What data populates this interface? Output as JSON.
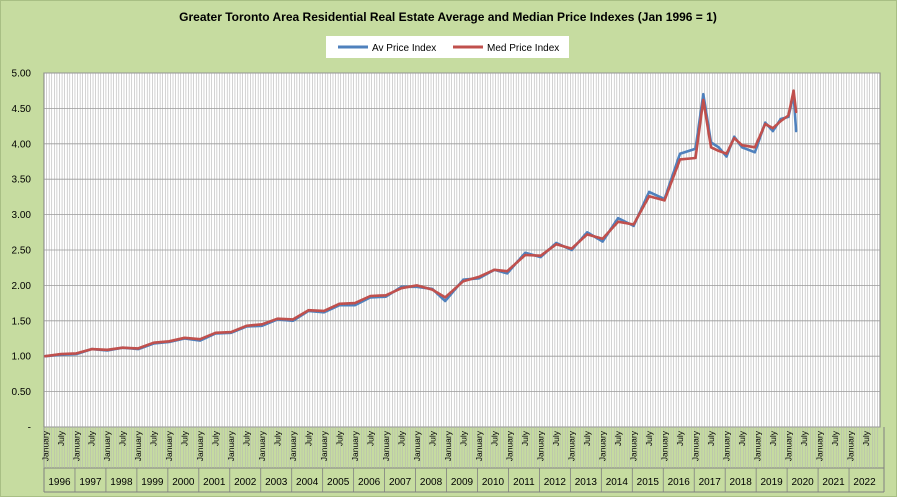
{
  "chart_data": {
    "type": "line",
    "title": "Greater Toronto Area Residential Real Estate Average and Median Price Indexes (Jan 1996 = 1)",
    "xlabel": "",
    "ylabel": "",
    "x_range": [
      "1996-01",
      "2022-12"
    ],
    "ylim": [
      0,
      5
    ],
    "y_ticks": [
      "-",
      "0.50",
      "1.00",
      "1.50",
      "2.00",
      "2.50",
      "3.00",
      "3.50",
      "4.00",
      "4.50",
      "5.00"
    ],
    "month_tick_labels": [
      "January",
      "July"
    ],
    "year_labels": [
      "1996",
      "1997",
      "1998",
      "1999",
      "2000",
      "2001",
      "2002",
      "2003",
      "2004",
      "2005",
      "2006",
      "2007",
      "2008",
      "2009",
      "2010",
      "2011",
      "2012",
      "2013",
      "2014",
      "2015",
      "2016",
      "2017",
      "2018",
      "2019",
      "2020",
      "2021",
      "2022"
    ],
    "grid": "vertical-monthly-and-horizontal",
    "legend_position": "top-center",
    "series": [
      {
        "name": "Av Price Index",
        "color": "#4f81bd",
        "points": [
          [
            "1996-01",
            1.0
          ],
          [
            "1996-07",
            1.02
          ],
          [
            "1997-01",
            1.03
          ],
          [
            "1997-07",
            1.1
          ],
          [
            "1998-01",
            1.08
          ],
          [
            "1998-07",
            1.12
          ],
          [
            "1999-01",
            1.1
          ],
          [
            "1999-07",
            1.18
          ],
          [
            "2000-01",
            1.2
          ],
          [
            "2000-07",
            1.25
          ],
          [
            "2001-01",
            1.22
          ],
          [
            "2001-07",
            1.32
          ],
          [
            "2002-01",
            1.33
          ],
          [
            "2002-07",
            1.42
          ],
          [
            "2003-01",
            1.43
          ],
          [
            "2003-07",
            1.52
          ],
          [
            "2004-01",
            1.5
          ],
          [
            "2004-07",
            1.64
          ],
          [
            "2005-01",
            1.62
          ],
          [
            "2005-07",
            1.72
          ],
          [
            "2006-01",
            1.72
          ],
          [
            "2006-07",
            1.83
          ],
          [
            "2007-01",
            1.84
          ],
          [
            "2007-07",
            1.98
          ],
          [
            "2008-01",
            1.98
          ],
          [
            "2008-07",
            1.95
          ],
          [
            "2008-12",
            1.78
          ],
          [
            "2009-07",
            2.08
          ],
          [
            "2010-01",
            2.1
          ],
          [
            "2010-07",
            2.22
          ],
          [
            "2010-12",
            2.17
          ],
          [
            "2011-07",
            2.46
          ],
          [
            "2012-01",
            2.4
          ],
          [
            "2012-07",
            2.6
          ],
          [
            "2013-01",
            2.5
          ],
          [
            "2013-07",
            2.75
          ],
          [
            "2014-01",
            2.62
          ],
          [
            "2014-07",
            2.95
          ],
          [
            "2015-01",
            2.84
          ],
          [
            "2015-07",
            3.32
          ],
          [
            "2016-01",
            3.22
          ],
          [
            "2016-07",
            3.86
          ],
          [
            "2017-01",
            3.93
          ],
          [
            "2017-04",
            4.7
          ],
          [
            "2017-07",
            4.02
          ],
          [
            "2017-10",
            3.95
          ],
          [
            "2018-01",
            3.82
          ],
          [
            "2018-04",
            4.1
          ],
          [
            "2018-07",
            3.95
          ],
          [
            "2018-12",
            3.88
          ],
          [
            "2019-04",
            4.3
          ],
          [
            "2019-07",
            4.18
          ],
          [
            "2019-10",
            4.35
          ],
          [
            "2020-01",
            4.38
          ],
          [
            "2020-03",
            4.7
          ],
          [
            "2020-04",
            4.18
          ]
        ]
      },
      {
        "name": "Med Price Index",
        "color": "#c0504d",
        "points": [
          [
            "1996-01",
            1.0
          ],
          [
            "1996-07",
            1.03
          ],
          [
            "1997-01",
            1.04
          ],
          [
            "1997-07",
            1.1
          ],
          [
            "1998-01",
            1.09
          ],
          [
            "1998-07",
            1.12
          ],
          [
            "1999-01",
            1.11
          ],
          [
            "1999-07",
            1.19
          ],
          [
            "2000-01",
            1.21
          ],
          [
            "2000-07",
            1.26
          ],
          [
            "2001-01",
            1.24
          ],
          [
            "2001-07",
            1.33
          ],
          [
            "2002-01",
            1.34
          ],
          [
            "2002-07",
            1.43
          ],
          [
            "2003-01",
            1.45
          ],
          [
            "2003-07",
            1.53
          ],
          [
            "2004-01",
            1.52
          ],
          [
            "2004-07",
            1.65
          ],
          [
            "2005-01",
            1.64
          ],
          [
            "2005-07",
            1.74
          ],
          [
            "2006-01",
            1.75
          ],
          [
            "2006-07",
            1.85
          ],
          [
            "2007-01",
            1.86
          ],
          [
            "2007-07",
            1.96
          ],
          [
            "2008-01",
            2.0
          ],
          [
            "2008-07",
            1.94
          ],
          [
            "2008-12",
            1.83
          ],
          [
            "2009-07",
            2.06
          ],
          [
            "2010-01",
            2.12
          ],
          [
            "2010-07",
            2.22
          ],
          [
            "2010-12",
            2.2
          ],
          [
            "2011-07",
            2.43
          ],
          [
            "2012-01",
            2.42
          ],
          [
            "2012-07",
            2.58
          ],
          [
            "2013-01",
            2.52
          ],
          [
            "2013-07",
            2.72
          ],
          [
            "2014-01",
            2.66
          ],
          [
            "2014-07",
            2.9
          ],
          [
            "2015-01",
            2.86
          ],
          [
            "2015-07",
            3.26
          ],
          [
            "2016-01",
            3.2
          ],
          [
            "2016-07",
            3.78
          ],
          [
            "2017-01",
            3.8
          ],
          [
            "2017-04",
            4.62
          ],
          [
            "2017-07",
            3.95
          ],
          [
            "2017-10",
            3.9
          ],
          [
            "2018-01",
            3.86
          ],
          [
            "2018-04",
            4.08
          ],
          [
            "2018-07",
            3.98
          ],
          [
            "2018-12",
            3.95
          ],
          [
            "2019-04",
            4.28
          ],
          [
            "2019-07",
            4.22
          ],
          [
            "2019-10",
            4.32
          ],
          [
            "2020-01",
            4.4
          ],
          [
            "2020-03",
            4.75
          ],
          [
            "2020-04",
            4.45
          ]
        ]
      }
    ]
  }
}
